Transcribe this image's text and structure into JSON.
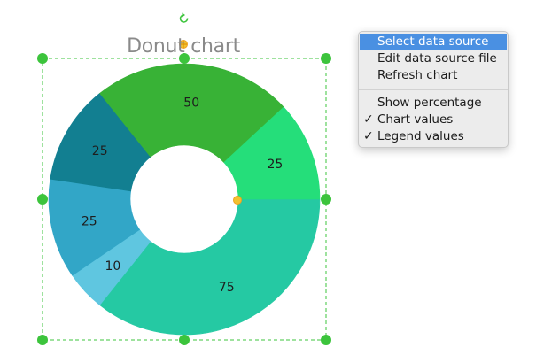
{
  "chart_data": {
    "type": "donut",
    "title": "Donut chart",
    "slices": [
      {
        "label": "75",
        "value": 75,
        "color": "#25c9a3"
      },
      {
        "label": "10",
        "value": 10,
        "color": "#5fc6e0"
      },
      {
        "label": "25",
        "value": 25,
        "color": "#32a6c7"
      },
      {
        "label": "25",
        "value": 25,
        "color": "#127f91"
      },
      {
        "label": "50",
        "value": 50,
        "color": "#38b236"
      },
      {
        "label": "25",
        "value": 25,
        "color": "#25de7a"
      }
    ],
    "start_angle_deg": 0,
    "direction": "clockwise",
    "legend": "none"
  },
  "selection": {
    "border_color": "#3cc43c",
    "handle_color": "#3cc43c",
    "rotate_handle_color": "#3cc43c",
    "control_point_color": "#f2c12e",
    "control_point_outline": "#f0a020"
  },
  "context_menu": {
    "items": [
      {
        "label": "Select data source",
        "selected": true,
        "checked": false
      },
      {
        "label": "Edit data source file",
        "selected": false,
        "checked": false
      },
      {
        "label": "Refresh chart",
        "selected": false,
        "checked": false
      },
      {
        "label": "Show percentage",
        "selected": false,
        "checked": false
      },
      {
        "label": "Chart values",
        "selected": false,
        "checked": true
      },
      {
        "label": "Legend values",
        "selected": false,
        "checked": true
      }
    ],
    "check_glyph": "✓"
  }
}
